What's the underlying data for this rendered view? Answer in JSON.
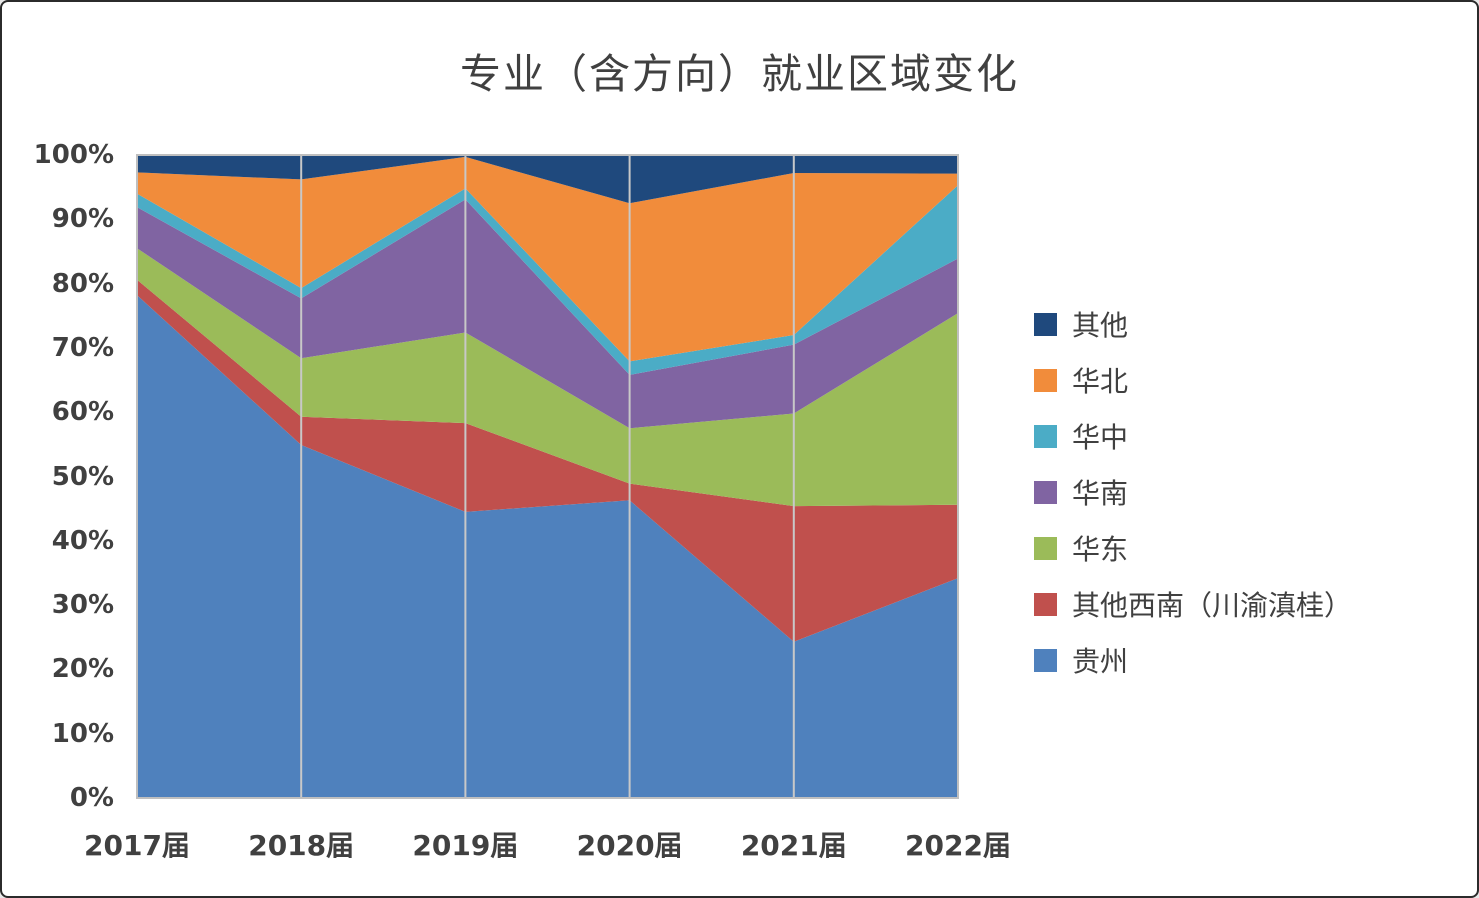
{
  "window": {
    "background": "#FFFFFF",
    "frame_border_color": "#2B2B2B"
  },
  "chart_data": {
    "type": "area",
    "stacked": true,
    "percent_stacked": true,
    "title": "专业（含方向）就业区域变化",
    "categories": [
      "2017届",
      "2018届",
      "2019届",
      "2020届",
      "2021届",
      "2022届"
    ],
    "series": [
      {
        "key": "guizhou",
        "name": "贵州",
        "color": "#4F81BD",
        "values": [
          78.2,
          54.9,
          44.5,
          46.3,
          24.3,
          34.2
        ]
      },
      {
        "key": "other-southwest",
        "name": "其他西南（川渝滇桂）",
        "color": "#C0504D",
        "values": [
          2.4,
          4.4,
          13.8,
          2.6,
          21.1,
          11.4
        ]
      },
      {
        "key": "huadong",
        "name": "华东",
        "color": "#9BBB59",
        "values": [
          4.9,
          9.1,
          14.1,
          8.6,
          14.4,
          29.8
        ]
      },
      {
        "key": "huanan",
        "name": "华南",
        "color": "#8064A2",
        "values": [
          6.4,
          9.3,
          20.7,
          8.3,
          10.7,
          8.5
        ]
      },
      {
        "key": "huazhong",
        "name": "华中",
        "color": "#4BACC6",
        "values": [
          2.1,
          1.6,
          1.7,
          2.1,
          1.5,
          11.4
        ]
      },
      {
        "key": "huabei",
        "name": "华北",
        "color": "#F18C3B",
        "values": [
          3.3,
          16.9,
          4.9,
          24.6,
          25.2,
          1.8
        ]
      },
      {
        "key": "other",
        "name": "其他",
        "color": "#1F497D",
        "values": [
          2.7,
          3.8,
          0.3,
          7.5,
          2.8,
          2.9
        ]
      }
    ],
    "stack_order_note": "series listed bottom-to-top; legend displays top-to-bottom reversed",
    "y_ticks": [
      "0%",
      "10%",
      "20%",
      "30%",
      "40%",
      "50%",
      "60%",
      "70%",
      "80%",
      "90%",
      "100%"
    ],
    "ylim": [
      0,
      100
    ],
    "legend_position": "right",
    "legend_order_top_to_bottom": [
      "其他",
      "华北",
      "华中",
      "华南",
      "华东",
      "其他西南（川渝滇桂）",
      "贵州"
    ],
    "grid": {
      "vertical": true,
      "horizontal": false,
      "color": "#C8C8C8"
    },
    "axis_color": "#BFBFBF",
    "text_color": "#404040"
  }
}
